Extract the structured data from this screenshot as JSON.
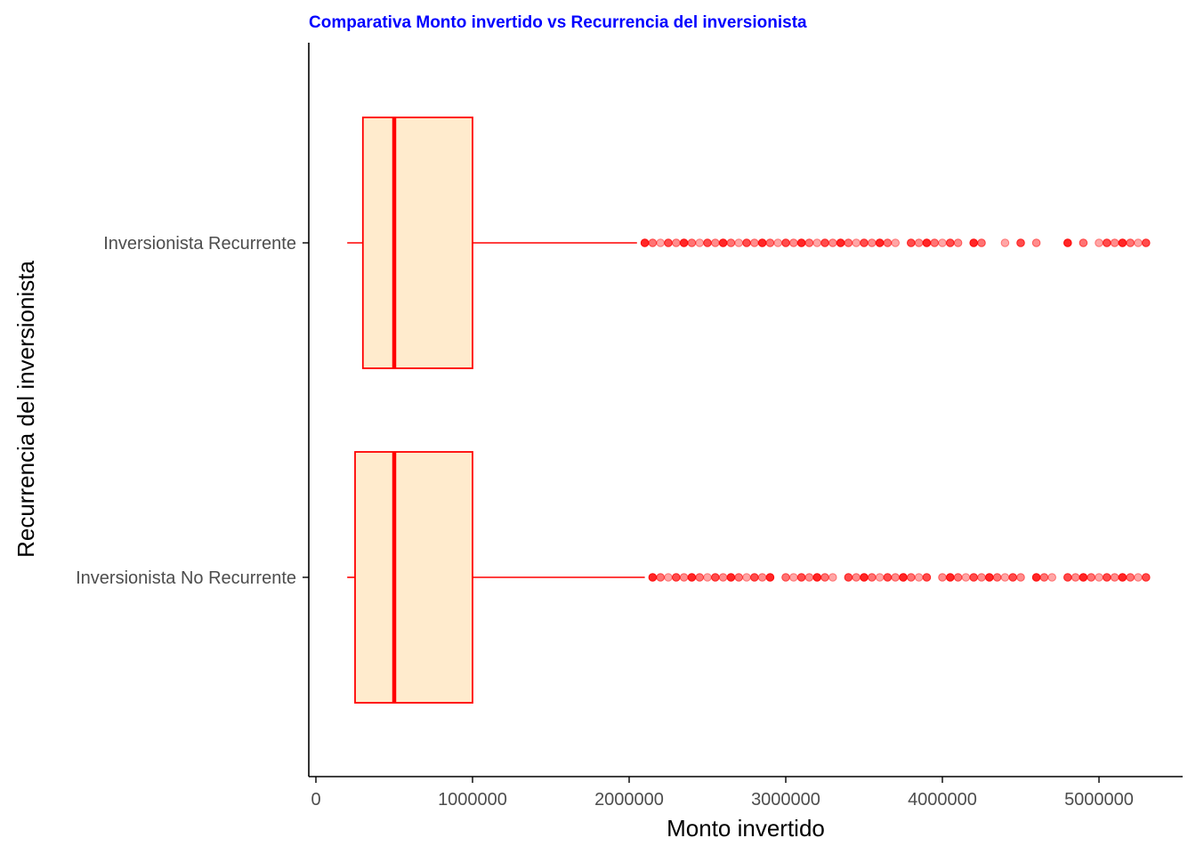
{
  "colors": {
    "title": "#0000ff",
    "box_fill": "#ffebcd",
    "box_stroke": "#ff0000",
    "outlier": "#ff0000",
    "axis": "#000000",
    "tick_label": "#4d4d4d"
  },
  "chart_data": {
    "type": "boxplot",
    "orientation": "horizontal",
    "title": "Comparativa Monto invertido vs Recurrencia del inversionista",
    "xlabel": "Monto invertido",
    "ylabel": "Recurrencia del inversionista",
    "xlim": [
      -50000,
      5550000
    ],
    "xticks": [
      0,
      1000000,
      2000000,
      3000000,
      4000000,
      5000000
    ],
    "xtick_labels": [
      "0",
      "1000000",
      "2000000",
      "3000000",
      "4000000",
      "5000000"
    ],
    "grid": false,
    "categories": [
      "Inversionista No Recurrente",
      "Inversionista Recurrente"
    ],
    "series": [
      {
        "category": "Inversionista No Recurrente",
        "whisker_low": 200000,
        "q1": 250000,
        "median": 500000,
        "q3": 1000000,
        "whisker_high": 2100000,
        "outliers": [
          2150000,
          2200000,
          2250000,
          2300000,
          2350000,
          2400000,
          2450000,
          2500000,
          2550000,
          2600000,
          2650000,
          2700000,
          2750000,
          2800000,
          2850000,
          2900000,
          3000000,
          3050000,
          3100000,
          3150000,
          3200000,
          3250000,
          3300000,
          3400000,
          3450000,
          3500000,
          3550000,
          3600000,
          3650000,
          3700000,
          3750000,
          3800000,
          3850000,
          3900000,
          4000000,
          4050000,
          4100000,
          4150000,
          4200000,
          4250000,
          4300000,
          4350000,
          4400000,
          4450000,
          4500000,
          4600000,
          4650000,
          4700000,
          4800000,
          4850000,
          4900000,
          4950000,
          5000000,
          5050000,
          5100000,
          5150000,
          5200000,
          5250000,
          5300000
        ]
      },
      {
        "category": "Inversionista Recurrente",
        "whisker_low": 200000,
        "q1": 300000,
        "median": 500000,
        "q3": 1000000,
        "whisker_high": 2050000,
        "outliers": [
          2100000,
          2150000,
          2200000,
          2250000,
          2300000,
          2350000,
          2400000,
          2450000,
          2500000,
          2550000,
          2600000,
          2650000,
          2700000,
          2750000,
          2800000,
          2850000,
          2900000,
          2950000,
          3000000,
          3050000,
          3100000,
          3150000,
          3200000,
          3250000,
          3300000,
          3350000,
          3400000,
          3450000,
          3500000,
          3550000,
          3600000,
          3650000,
          3700000,
          3800000,
          3850000,
          3900000,
          3950000,
          4000000,
          4050000,
          4100000,
          4200000,
          4250000,
          4400000,
          4500000,
          4600000,
          4800000,
          4900000,
          5000000,
          5050000,
          5100000,
          5150000,
          5200000,
          5250000,
          5300000
        ]
      }
    ]
  }
}
